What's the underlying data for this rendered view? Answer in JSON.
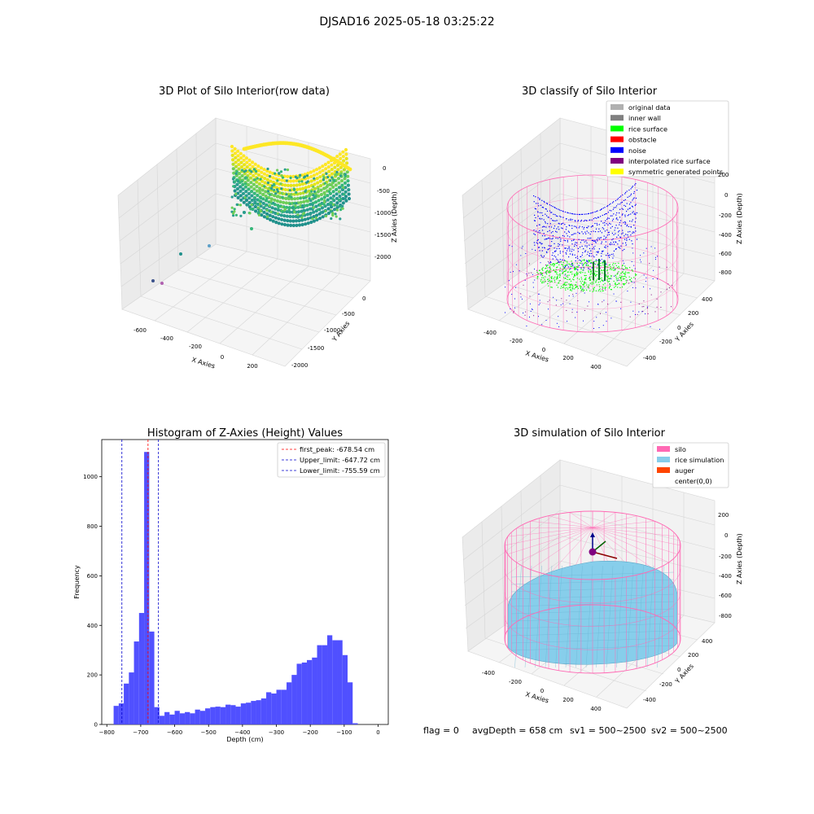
{
  "suptitle": "DJSAD16 2025-05-18 03:25:22",
  "colors": {
    "pane": "#f2f2f2",
    "grid": "#d6d6d6",
    "silo": "#ff69b4",
    "rice": "#87ceeb",
    "surface": "#00ff00",
    "noise": "#0000ff",
    "hist": "#4c4cff"
  },
  "panels": {
    "raw": {
      "title": "3D Plot of Silo Interior(row data)",
      "xlabel": "X Axies",
      "ylabel": "Y Axies",
      "zlabel": "Z Axies (Depth)",
      "xticks": [
        "-600",
        "-400",
        "-200",
        "0",
        "200"
      ],
      "yticks": [
        "0",
        "-500",
        "-1000",
        "-1500",
        "-2000"
      ],
      "zticks": [
        "0",
        "-500",
        "-1000",
        "-1500",
        "-2000"
      ]
    },
    "classify": {
      "title": "3D classify of Silo Interior",
      "xlabel": "X Axies",
      "ylabel": "Y Axies",
      "zlabel": "Z Axies (Depth)",
      "xticks": [
        "-400",
        "-200",
        "0",
        "200",
        "400"
      ],
      "yticks": [
        "400",
        "200",
        "0",
        "-200",
        "-400"
      ],
      "zticks": [
        "200",
        "0",
        "-200",
        "-400",
        "-600",
        "-800"
      ],
      "legend": [
        {
          "label": "original data",
          "color": "#b0b0b0"
        },
        {
          "label": "inner wall",
          "color": "#808080"
        },
        {
          "label": "rice surface",
          "color": "#00ff00"
        },
        {
          "label": "obstacle",
          "color": "#ff0000"
        },
        {
          "label": "noise",
          "color": "#0000ff"
        },
        {
          "label": "interpolated rice surface",
          "color": "#800080"
        },
        {
          "label": "symmetric generated points",
          "color": "#ffff00"
        }
      ]
    },
    "simulation": {
      "title": "3D simulation of Silo Interior",
      "xlabel": "X Axies",
      "ylabel": "Y Axies",
      "zlabel": "Z Axies (Depth)",
      "xticks": [
        "-400",
        "-200",
        "0",
        "200",
        "400"
      ],
      "yticks": [
        "400",
        "200",
        "0",
        "-200",
        "-400"
      ],
      "zticks": [
        "200",
        "0",
        "-200",
        "-400",
        "-600",
        "-800"
      ],
      "legend": [
        {
          "label": "silo",
          "color": "#ff69b4"
        },
        {
          "label": "rice simulation",
          "color": "#87ceeb"
        },
        {
          "label": "auger",
          "color": "#ff4500"
        },
        {
          "label": "center(0,0)",
          "color": "#ffffff"
        }
      ]
    }
  },
  "chart_data": {
    "type": "bar",
    "title": "Histogram of Z-Axies (Height) Values",
    "xlabel": "Depth (cm)",
    "ylabel": "Frequency",
    "xlim": [
      -800,
      0
    ],
    "ylim": [
      0,
      1150
    ],
    "xticks": [
      -800,
      -700,
      -600,
      -500,
      -400,
      -300,
      -200,
      -100,
      0
    ],
    "yticks": [
      0,
      200,
      400,
      600,
      800,
      1000
    ],
    "bin_width": 15,
    "bins": [
      [
        -780,
        75
      ],
      [
        -765,
        85
      ],
      [
        -750,
        165
      ],
      [
        -735,
        210
      ],
      [
        -720,
        335
      ],
      [
        -705,
        450
      ],
      [
        -690,
        1100
      ],
      [
        -675,
        375
      ],
      [
        -660,
        70
      ],
      [
        -645,
        35
      ],
      [
        -630,
        50
      ],
      [
        -615,
        40
      ],
      [
        -600,
        55
      ],
      [
        -585,
        45
      ],
      [
        -570,
        50
      ],
      [
        -555,
        45
      ],
      [
        -540,
        60
      ],
      [
        -525,
        55
      ],
      [
        -510,
        65
      ],
      [
        -495,
        70
      ],
      [
        -480,
        72
      ],
      [
        -465,
        70
      ],
      [
        -450,
        80
      ],
      [
        -435,
        78
      ],
      [
        -420,
        72
      ],
      [
        -405,
        85
      ],
      [
        -390,
        88
      ],
      [
        -375,
        95
      ],
      [
        -360,
        98
      ],
      [
        -345,
        105
      ],
      [
        -330,
        130
      ],
      [
        -315,
        125
      ],
      [
        -300,
        140
      ],
      [
        -285,
        140
      ],
      [
        -270,
        170
      ],
      [
        -255,
        200
      ],
      [
        -240,
        245
      ],
      [
        -225,
        250
      ],
      [
        -210,
        260
      ],
      [
        -195,
        270
      ],
      [
        -180,
        320
      ],
      [
        -165,
        320
      ],
      [
        -150,
        360
      ],
      [
        -135,
        340
      ],
      [
        -120,
        340
      ],
      [
        -105,
        280
      ],
      [
        -90,
        170
      ],
      [
        -75,
        5
      ]
    ],
    "lines": [
      {
        "label": "first_peak: -678.54 cm",
        "x": -678.54,
        "color": "#ff0000"
      },
      {
        "label": "Upper_limit: -647.72 cm",
        "x": -647.72,
        "color": "#0000cc"
      },
      {
        "label": "Lower_limit: -755.59 cm",
        "x": -755.59,
        "color": "#0000cc"
      }
    ],
    "legend_position": "top-right"
  },
  "footer": {
    "flag": "flag = 0",
    "avg": "avgDepth = 658 cm",
    "sv1": "sv1 = 500~2500",
    "sv2": "sv2 = 500~2500"
  }
}
